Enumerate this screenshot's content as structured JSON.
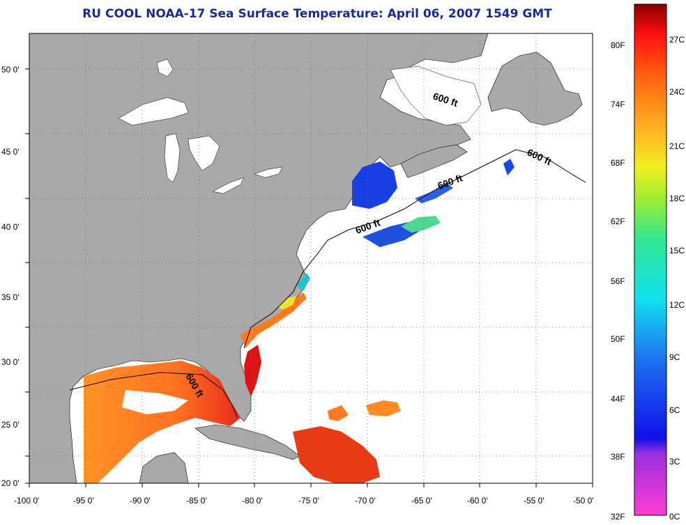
{
  "title": "RU COOL  NOAA-17  Sea Surface Temperature:  April 06, 2007 1549 GMT",
  "colors": {
    "land": "#a9a9a9",
    "ocean": "#ffffff",
    "frame": "#000000",
    "title": "#1a2a9a"
  },
  "lat_labels": [
    "20 0'",
    "25 0'",
    "30 0'",
    "35 0'",
    "40 0'",
    "45 0'",
    "50 0'"
  ],
  "lon_labels": [
    "-100 0'",
    "-95 0'",
    "-90 0'",
    "-85 0'",
    "-80 0'",
    "-75 0'",
    "-70 0'",
    "-65 0'",
    "-60 0'",
    "-55 0'",
    "-50 0'"
  ],
  "depth_label": "600 ft",
  "colorbar": {
    "fahrenheit": [
      "32F",
      "38F",
      "44F",
      "50F",
      "56F",
      "62F",
      "68F",
      "74F",
      "80F"
    ],
    "celsius": [
      "0C",
      "3C",
      "6C",
      "9C",
      "12C",
      "15C",
      "18C",
      "21C",
      "24C",
      "27C"
    ]
  }
}
